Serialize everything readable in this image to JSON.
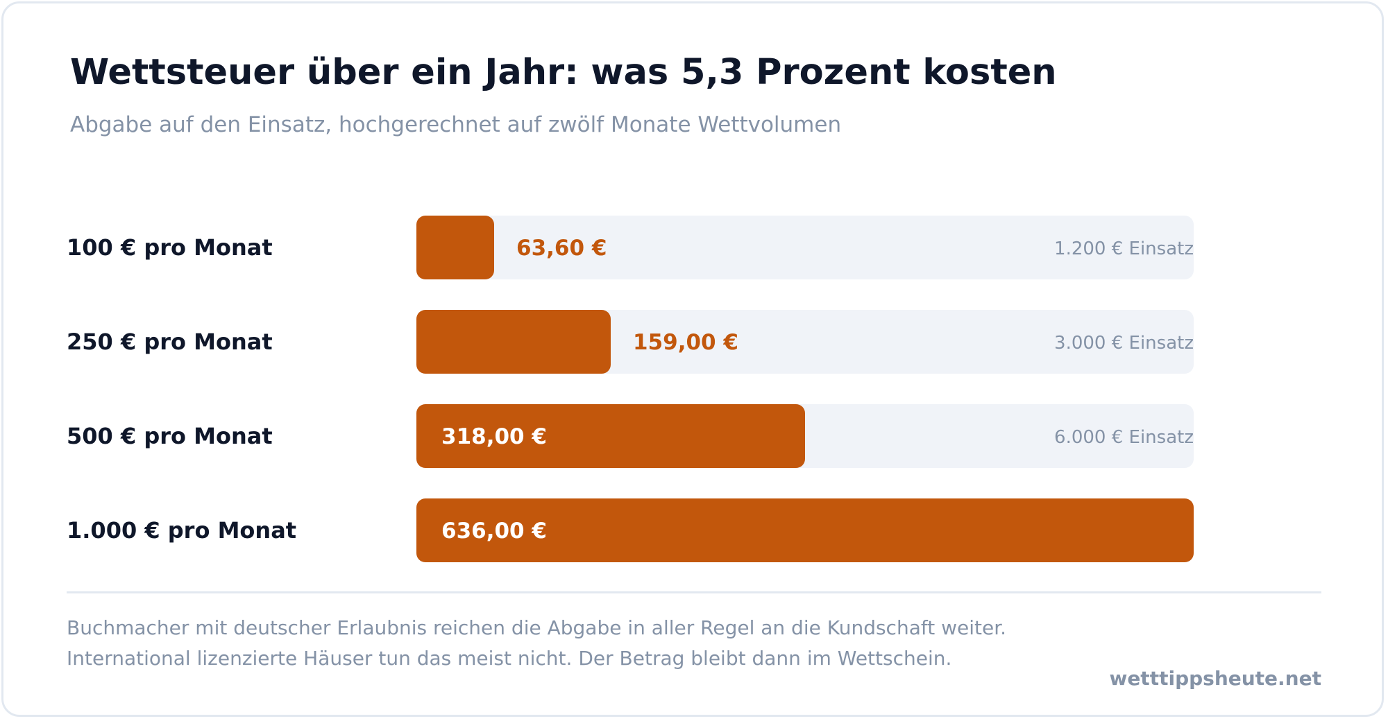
{
  "chart_data": {
    "type": "bar",
    "orientation": "horizontal",
    "title": "Wettsteuer über ein Jahr: was 5,3 Prozent kosten",
    "subtitle": "Abgabe auf den Einsatz, hochgerechnet auf zwölf Monate Wettvolumen",
    "categories": [
      "100 € pro Monat",
      "250 € pro Monat",
      "500 € pro Monat",
      "1.000 € pro Monat"
    ],
    "values": [
      63.6,
      159.0,
      318.0,
      636.0
    ],
    "value_labels": [
      "63,60 €",
      "159,00 €",
      "318,00 €",
      "636,00 €"
    ],
    "track_notes": [
      "1.200 € Einsatz",
      "3.000 € Einsatz",
      "6.000 € Einsatz",
      ""
    ],
    "xlim": [
      0,
      636
    ],
    "grid": false,
    "legend": "none"
  },
  "colors": {
    "bar": "#c2570c",
    "track": "#f0f3f8",
    "label_on_bar": "#ffffff",
    "label_off_bar": "#c2570c"
  },
  "footnote_lines": [
    "Buchmacher mit deutscher Erlaubnis reichen die Abgabe in aller Regel an die Kundschaft weiter.",
    "International lizenzierte Häuser tun das meist nicht. Der Betrag bleibt dann im Wettschein."
  ],
  "brand": "wetttippsheute.net"
}
